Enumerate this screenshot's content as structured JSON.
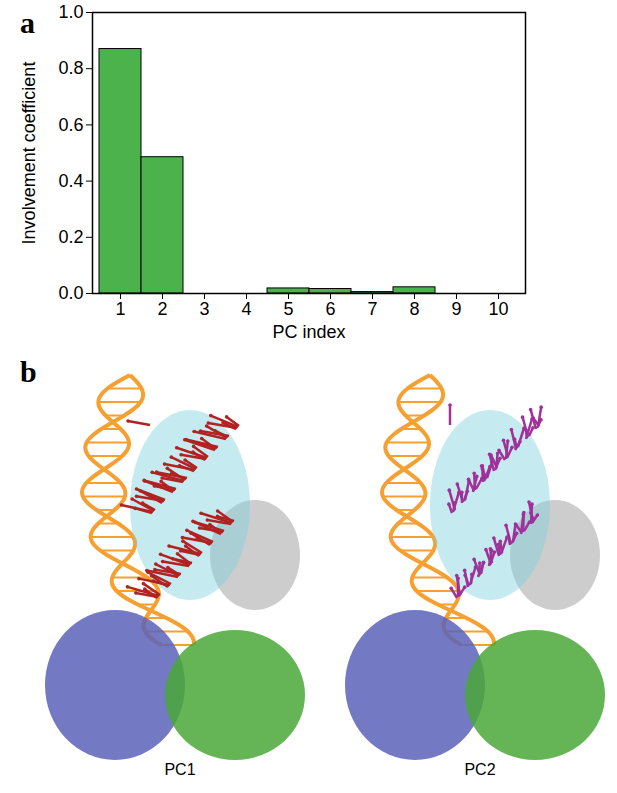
{
  "chart_data": {
    "type": "bar",
    "panel_label": "a",
    "x_label": "PC index",
    "y_label": "Involvement coefficient",
    "categories": [
      "1",
      "2",
      "3",
      "4",
      "5",
      "6",
      "7",
      "8",
      "9",
      "10"
    ],
    "values": [
      0.87,
      0.485,
      0,
      0,
      0.018,
      0.016,
      0.005,
      0.022,
      0,
      0
    ],
    "color": "#4cb34c",
    "ylim": [
      0,
      1
    ],
    "yticks": [
      {
        "value": 0,
        "label": "0.0"
      },
      0.2,
      0.4,
      0.6,
      0.8,
      {
        "value": 1,
        "label": "1.0"
      }
    ],
    "grid": false
  },
  "structures": {
    "panel_label": "b",
    "captions": [
      "PC1",
      "PC2"
    ]
  }
}
